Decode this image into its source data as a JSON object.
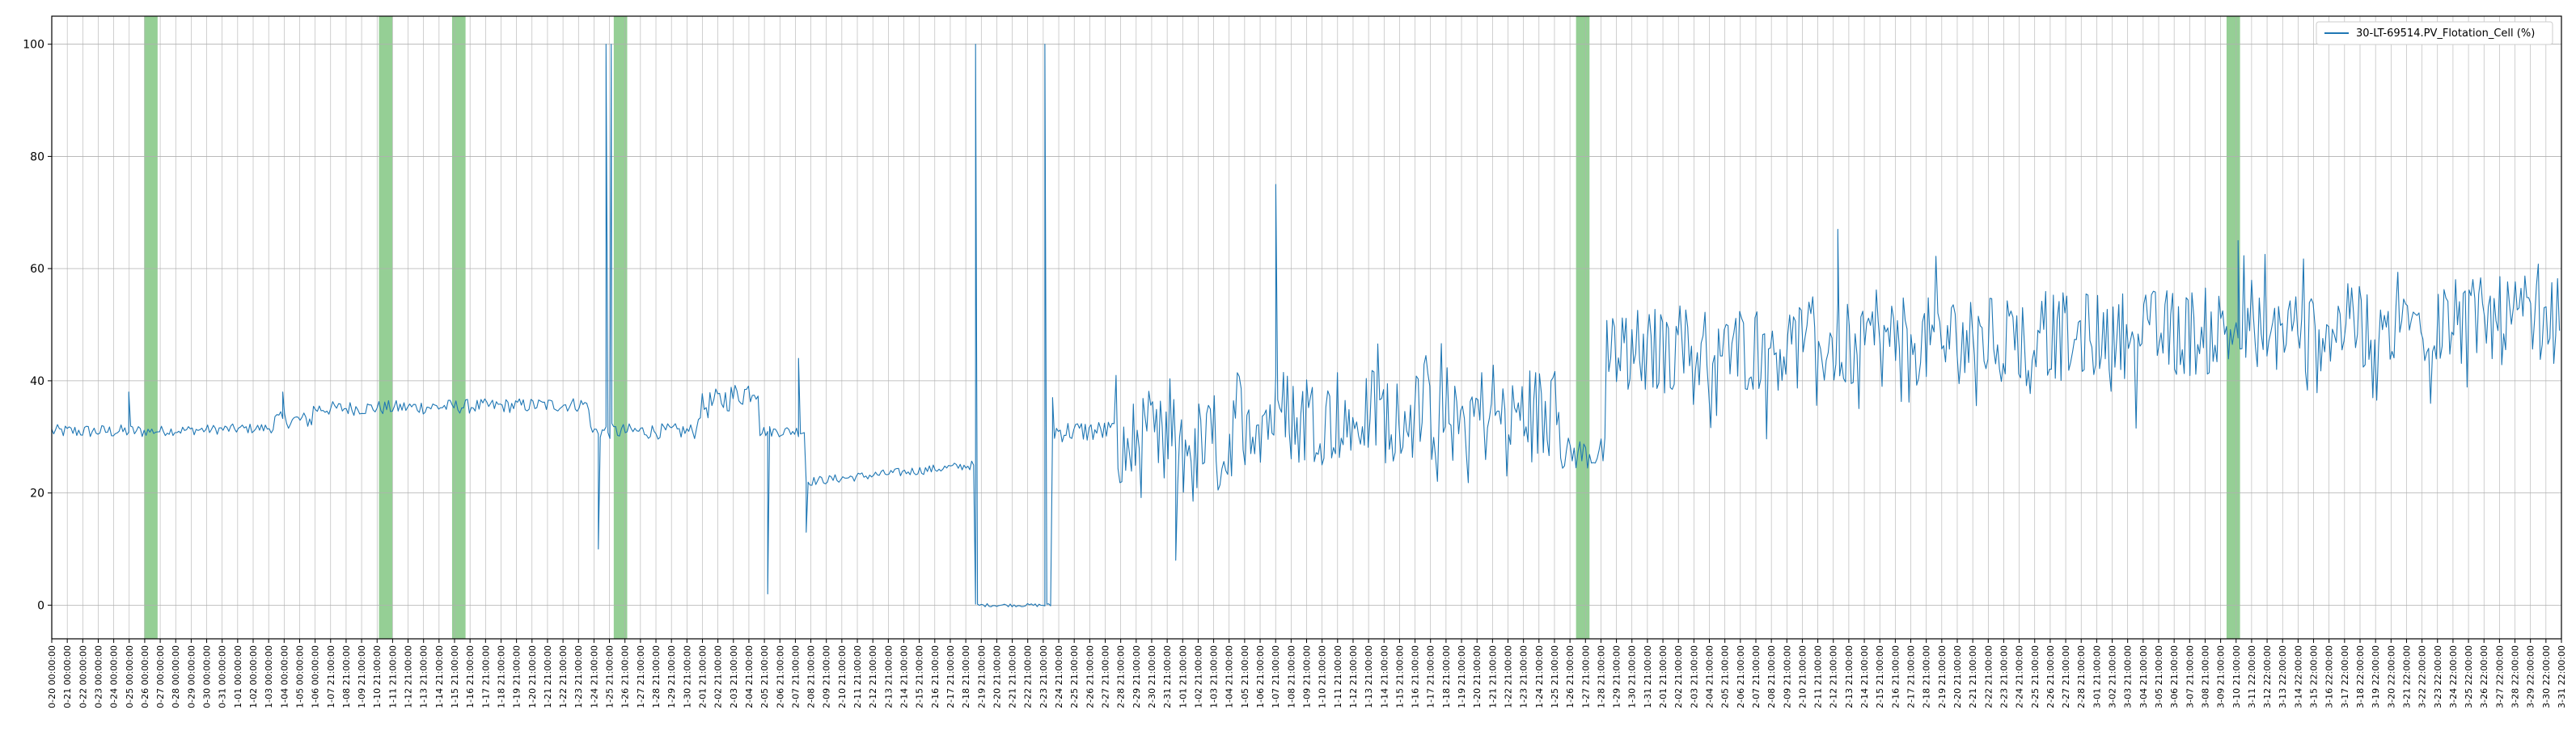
{
  "chart_data": {
    "type": "line",
    "title": "",
    "xlabel": "",
    "ylabel": "",
    "ylim": [
      -6,
      105
    ],
    "yticks": [
      0,
      20,
      40,
      60,
      80,
      100
    ],
    "grid": true,
    "legend_position": "top-right",
    "colors": {
      "series": "#1f77b4",
      "band": "#2ca02c",
      "grid": "#b0b0b0",
      "axes": "#000000"
    },
    "x_start": "2023-10-20 00:00:00",
    "x_end": "2024-03-31 00:00:00",
    "xtick_labels": [
      "0-20 00:00:00",
      "0-21 00:00:00",
      "0-22 00:00:00",
      "0-23 00:00:00",
      "0-24 00:00:00",
      "0-25 00:00:00",
      "0-26 00:00:00",
      "0-27 00:00:00",
      "0-28 00:00:00",
      "0-29 00:00:00",
      "0-30 00:00:00",
      "0-31 00:00:00",
      "1-01 00:00:00",
      "1-02 00:00:00",
      "1-03 00:00:00",
      "1-04 00:00:00",
      "1-05 00:00:00",
      "1-06 00:00:00",
      "1-07 21:00:00",
      "1-08 21:00:00",
      "1-09 21:00:00",
      "1-10 21:00:00",
      "1-11 21:00:00",
      "1-12 21:00:00",
      "1-13 21:00:00",
      "1-14 21:00:00",
      "1-15 21:00:00",
      "1-16 21:00:00",
      "1-17 21:00:00",
      "1-18 21:00:00",
      "1-19 21:00:00",
      "1-20 21:00:00",
      "1-21 21:00:00",
      "1-22 21:00:00",
      "1-23 21:00:00",
      "1-24 21:00:00",
      "1-25 21:00:00",
      "1-26 21:00:00",
      "1-27 21:00:00",
      "1-28 21:00:00",
      "1-29 21:00:00",
      "1-30 21:00:00",
      "2-01 21:00:00",
      "2-02 21:00:00",
      "2-03 21:00:00",
      "2-04 21:00:00",
      "2-05 21:00:00",
      "2-06 21:00:00",
      "2-07 21:00:00",
      "2-08 21:00:00",
      "2-09 21:00:00",
      "2-10 21:00:00",
      "2-11 21:00:00",
      "2-12 21:00:00",
      "2-13 21:00:00",
      "2-14 21:00:00",
      "2-15 21:00:00",
      "2-16 21:00:00",
      "2-17 21:00:00",
      "2-18 21:00:00",
      "2-19 21:00:00",
      "2-20 21:00:00",
      "2-21 21:00:00",
      "2-22 21:00:00",
      "2-23 21:00:00",
      "2-24 21:00:00",
      "2-25 21:00:00",
      "2-26 21:00:00",
      "2-27 21:00:00",
      "2-28 21:00:00",
      "2-29 21:00:00",
      "2-30 21:00:00",
      "2-31 21:00:00",
      "1-01 21:00:00",
      "1-02 21:00:00",
      "1-03 21:00:00",
      "1-04 21:00:00",
      "1-05 21:00:00",
      "1-06 21:00:00",
      "1-07 21:00:00",
      "1-08 21:00:00",
      "1-09 21:00:00",
      "1-10 21:00:00",
      "1-11 21:00:00",
      "1-12 21:00:00",
      "1-13 21:00:00",
      "1-14 21:00:00",
      "1-15 21:00:00",
      "1-16 21:00:00",
      "1-17 21:00:00",
      "1-18 21:00:00",
      "1-19 21:00:00",
      "1-20 21:00:00",
      "1-21 21:00:00",
      "1-22 21:00:00",
      "1-23 21:00:00",
      "1-24 21:00:00",
      "1-25 21:00:00",
      "1-26 21:00:00",
      "1-27 21:00:00",
      "1-28 21:00:00",
      "1-29 21:00:00",
      "1-30 21:00:00",
      "1-31 21:00:00",
      "2-01 21:00:00",
      "2-02 21:00:00",
      "2-03 21:00:00",
      "2-04 21:00:00",
      "2-05 21:00:00",
      "2-06 21:00:00",
      "2-07 21:00:00",
      "2-08 21:00:00",
      "2-09 21:00:00",
      "2-10 21:00:00",
      "2-11 21:00:00",
      "2-12 21:00:00",
      "2-13 21:00:00",
      "2-14 21:00:00",
      "2-15 21:00:00",
      "2-16 21:00:00",
      "2-17 21:00:00",
      "2-18 21:00:00",
      "2-19 21:00:00",
      "2-20 21:00:00",
      "2-21 21:00:00",
      "2-22 21:00:00",
      "2-23 21:00:00",
      "2-24 21:00:00",
      "2-25 21:00:00",
      "2-26 21:00:00",
      "2-27 21:00:00",
      "2-28 21:00:00",
      "3-01 21:00:00",
      "3-02 21:00:00",
      "3-03 21:00:00",
      "3-04 21:00:00",
      "3-05 21:00:00",
      "3-06 21:00:00",
      "3-07 21:00:00",
      "3-08 21:00:00",
      "3-09 21:00:00",
      "3-10 21:00:00",
      "3-11 22:00:00",
      "3-12 22:00:00",
      "3-13 22:00:00",
      "3-14 22:00:00",
      "3-15 22:00:00",
      "3-16 22:00:00",
      "3-17 22:00:00",
      "3-18 22:00:00",
      "3-19 22:00:00",
      "3-20 22:00:00",
      "3-21 22:00:00",
      "3-22 22:00:00",
      "3-23 22:00:00",
      "3-24 22:00:00",
      "3-25 22:00:00",
      "3-26 22:00:00",
      "3-27 22:00:00",
      "3-28 22:00:00",
      "3-29 22:00:00",
      "3-30 22:00:00",
      "3-31 22:00:00"
    ],
    "highlight_bands": [
      {
        "start": "2023-10-26 00:00:00",
        "end": "2023-10-26 21:00:00"
      },
      {
        "start": "2023-11-10 06:00:00",
        "end": "2023-11-11 03:00:00"
      },
      {
        "start": "2023-11-15 00:00:00",
        "end": "2023-11-15 21:00:00"
      },
      {
        "start": "2023-11-25 12:00:00",
        "end": "2023-11-26 09:00:00"
      },
      {
        "start": "2024-01-27 00:00:00",
        "end": "2024-01-27 21:00:00"
      },
      {
        "start": "2024-03-09 06:00:00",
        "end": "2024-03-10 03:00:00"
      }
    ],
    "series": [
      {
        "name": "30-LT-69514.PV_Flotation_Cell (%)",
        "segments": [
          {
            "start": "2023-10-20 00:00:00",
            "end": "2023-10-26 00:00:00",
            "base": 31,
            "noise": 1.2,
            "trend": 0
          },
          {
            "start": "2023-10-26 00:00:00",
            "end": "2023-11-03 12:00:00",
            "base": 31,
            "noise": 0.9,
            "trend": 0.6
          },
          {
            "start": "2023-11-03 12:00:00",
            "end": "2023-11-06 00:00:00",
            "base": 33,
            "noise": 1.5,
            "trend": 0
          },
          {
            "start": "2023-11-06 00:00:00",
            "end": "2023-11-24 00:00:00",
            "base": 35,
            "noise": 1.3,
            "trend": 0.8
          },
          {
            "start": "2023-11-24 00:00:00",
            "end": "2023-12-01 00:00:00",
            "base": 31,
            "noise": 1.4,
            "trend": 0
          },
          {
            "start": "2023-12-01 00:00:00",
            "end": "2023-12-05 00:00:00",
            "base": 35,
            "noise": 2.5,
            "trend": 4
          },
          {
            "start": "2023-12-05 00:00:00",
            "end": "2023-12-08 00:00:00",
            "base": 31,
            "noise": 1.0,
            "trend": 0
          },
          {
            "start": "2023-12-08 00:00:00",
            "end": "2023-12-19 00:00:00",
            "base": 22,
            "noise": 0.8,
            "trend": 3
          },
          {
            "start": "2023-12-19 00:00:00",
            "end": "2023-12-24 00:00:00",
            "base": 0,
            "noise": 0.3,
            "trend": 0
          },
          {
            "start": "2023-12-24 00:00:00",
            "end": "2023-12-28 00:00:00",
            "base": 31,
            "noise": 2,
            "trend": 0
          },
          {
            "start": "2023-12-28 00:00:00",
            "end": "2024-01-05 00:00:00",
            "base": 28,
            "noise": 9,
            "trend": 0
          },
          {
            "start": "2024-01-05 00:00:00",
            "end": "2024-01-26 00:00:00",
            "base": 34,
            "noise": 9,
            "trend": 0
          },
          {
            "start": "2024-01-26 00:00:00",
            "end": "2024-01-29 00:00:00",
            "base": 27,
            "noise": 3,
            "trend": 0
          },
          {
            "start": "2024-01-29 00:00:00",
            "end": "2024-03-31 00:00:00",
            "base": 45,
            "noise": 8,
            "trend": 6
          }
        ],
        "events": [
          {
            "date": "2023-10-25 00:00:00",
            "y": 38
          },
          {
            "date": "2023-11-04 00:00:00",
            "y": 38
          },
          {
            "date": "2023-11-24 12:00:00",
            "y": 10
          },
          {
            "date": "2023-11-25 00:00:00",
            "y": 100
          },
          {
            "date": "2023-11-25 08:00:00",
            "y": 100
          },
          {
            "date": "2023-12-05 12:00:00",
            "y": 2
          },
          {
            "date": "2023-12-07 12:00:00",
            "y": 44
          },
          {
            "date": "2023-12-08 00:00:00",
            "y": 13
          },
          {
            "date": "2023-12-19 00:00:00",
            "y": 100
          },
          {
            "date": "2023-12-23 12:00:00",
            "y": 100
          },
          {
            "date": "2023-12-24 00:00:00",
            "y": 37
          },
          {
            "date": "2024-01-01 00:00:00",
            "y": 8
          },
          {
            "date": "2024-01-07 12:00:00",
            "y": 75
          },
          {
            "date": "2024-02-13 00:00:00",
            "y": 67
          },
          {
            "date": "2024-03-10 00:00:00",
            "y": 65
          }
        ]
      }
    ]
  }
}
